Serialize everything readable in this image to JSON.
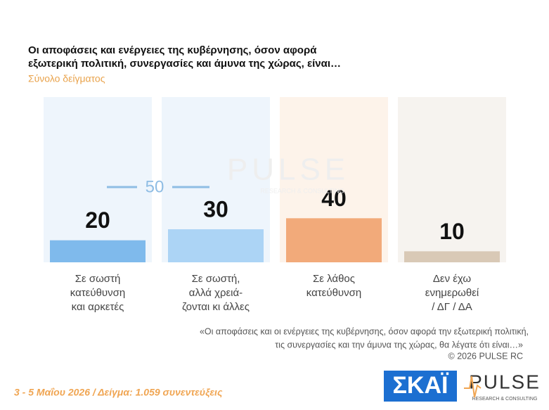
{
  "chart_data": {
    "type": "bar",
    "title": [
      "Οι αποφάσεις και ενέργειες της κυβέρνησης, όσον αφορά",
      "εξωτερική πολιτική, συνεργασίες και άμυνα της χώρας, είναι…"
    ],
    "subtitle": "Σύνολο δείγματος",
    "categories": [
      "Σε σωστή\nκατεύθυνση\nκαι αρκετές",
      "Σε σωστή,\nαλλά χρειά-\nζονται κι άλλες",
      "Σε λάθος\nκατεύθυνση",
      "Δεν έχω\nενημερωθεί\n/ ΔΓ / ΔΑ"
    ],
    "values": [
      20,
      30,
      40,
      10
    ],
    "colors": [
      "#7fbaec",
      "#acd4f5",
      "#f2aa7a",
      "#d9c9b6"
    ],
    "column_colors": [
      "#eef5fc",
      "#eef5fc",
      "#fdf3ea",
      "#f6f3ef"
    ],
    "group_total": 50,
    "ylim": [
      0,
      150
    ],
    "note": [
      "«Οι αποφάσεις και οι ενέργειες της κυβέρνησης, όσον αφορά την εξωτερική πολιτική,",
      "τις συνεργασίες και την άμυνα της χώρας, θα λέγατε ότι είναι…»",
      "©  2026  PULSE RC"
    ],
    "footer": "3 - 5  Μαΐου 2026  /  Δείγμα:  1.059 συνεντεύξεις",
    "logos": {
      "skai": "ΣΚΑΪ",
      "pulse": "PULSE",
      "tagline": "RESEARCH & CONSULTING"
    }
  }
}
